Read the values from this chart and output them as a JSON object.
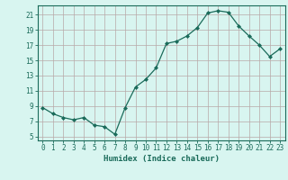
{
  "x": [
    0,
    1,
    2,
    3,
    4,
    5,
    6,
    7,
    8,
    9,
    10,
    11,
    12,
    13,
    14,
    15,
    16,
    17,
    18,
    19,
    20,
    21,
    22,
    23
  ],
  "y": [
    8.8,
    8.0,
    7.5,
    7.2,
    7.5,
    6.5,
    6.3,
    5.3,
    8.8,
    11.5,
    12.5,
    14.0,
    17.2,
    17.5,
    18.2,
    19.3,
    21.2,
    21.5,
    21.3,
    19.5,
    18.2,
    17.0,
    15.5,
    16.5
  ],
  "xlabel": "Humidex (Indice chaleur)",
  "xlim": [
    -0.5,
    23.5
  ],
  "ylim": [
    4.5,
    22.2
  ],
  "yticks": [
    5,
    7,
    9,
    11,
    13,
    15,
    17,
    19,
    21
  ],
  "xticks": [
    0,
    1,
    2,
    3,
    4,
    5,
    6,
    7,
    8,
    9,
    10,
    11,
    12,
    13,
    14,
    15,
    16,
    17,
    18,
    19,
    20,
    21,
    22,
    23
  ],
  "line_color": "#1a6b5a",
  "bg_color": "#d8f5f0",
  "grid_color": "#b8a8a8",
  "marker": "D",
  "marker_size": 2.0
}
